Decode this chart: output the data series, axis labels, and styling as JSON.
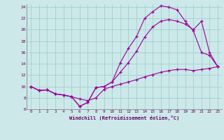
{
  "xlabel": "Windchill (Refroidissement éolien,°C)",
  "background_color": "#cce8e8",
  "line_color": "#990099",
  "grid_color": "#99cccc",
  "xmin": -0.5,
  "xmax": 23.5,
  "ymin": 6,
  "ymax": 24.5,
  "xticks": [
    0,
    1,
    2,
    3,
    4,
    5,
    6,
    7,
    8,
    9,
    10,
    11,
    12,
    13,
    14,
    15,
    16,
    17,
    18,
    19,
    20,
    21,
    22,
    23
  ],
  "yticks": [
    6,
    8,
    10,
    12,
    14,
    16,
    18,
    20,
    22,
    24
  ],
  "series_bottom_x": [
    0,
    1,
    2,
    3,
    4,
    5,
    6,
    7,
    8,
    9,
    10,
    11,
    12,
    13,
    14,
    15,
    16,
    17,
    18,
    19,
    20,
    21,
    22,
    23
  ],
  "series_bottom_y": [
    10,
    9.3,
    9.4,
    8.7,
    8.5,
    8.2,
    7.8,
    7.5,
    8.0,
    9.5,
    10.0,
    10.4,
    10.8,
    11.2,
    11.7,
    12.1,
    12.5,
    12.8,
    13.0,
    13.0,
    12.8,
    13.0,
    13.2,
    13.5
  ],
  "series_high_x": [
    0,
    1,
    2,
    3,
    4,
    5,
    6,
    7,
    8,
    9,
    10,
    11,
    12,
    13,
    14,
    15,
    16,
    17,
    18,
    19,
    20,
    21,
    22,
    23
  ],
  "series_high_y": [
    10,
    9.3,
    9.4,
    8.7,
    8.5,
    8.2,
    6.5,
    7.2,
    9.8,
    10.0,
    10.8,
    14.2,
    16.7,
    18.8,
    22.0,
    23.2,
    24.2,
    24.0,
    23.5,
    21.5,
    19.8,
    16.0,
    15.5,
    13.5
  ],
  "series_mid_x": [
    0,
    1,
    2,
    3,
    4,
    5,
    6,
    7,
    8,
    9,
    10,
    11,
    12,
    13,
    14,
    15,
    16,
    17,
    18,
    19,
    20,
    21,
    22,
    23
  ],
  "series_mid_y": [
    10,
    9.3,
    9.4,
    8.7,
    8.5,
    8.2,
    6.5,
    7.2,
    9.8,
    10.0,
    10.8,
    12.5,
    14.2,
    16.2,
    18.7,
    20.5,
    21.5,
    21.8,
    21.5,
    21.0,
    20.0,
    21.5,
    16.0,
    13.5
  ]
}
